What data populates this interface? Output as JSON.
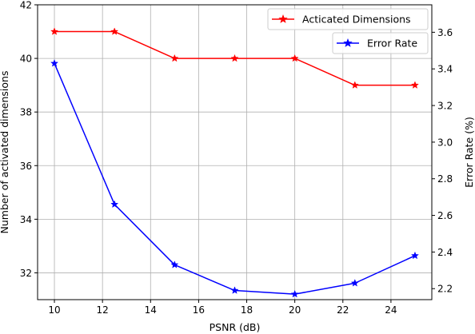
{
  "chart_data": {
    "type": "line",
    "title": "",
    "xlabel": "PSNR (dB)",
    "ylabel_left": "Number of activated dimensions",
    "ylabel_right": "Error Rate (%)",
    "x": [
      10,
      12.5,
      15,
      17.5,
      20,
      22.5,
      25
    ],
    "xlim": [
      9.3,
      25.7
    ],
    "ylim_left": [
      31.0,
      42.0
    ],
    "ylim_right": [
      2.14,
      3.75
    ],
    "xticks": [
      "10",
      "12",
      "14",
      "16",
      "18",
      "20",
      "22",
      "24"
    ],
    "yticks_left": [
      "32",
      "34",
      "36",
      "38",
      "40",
      "42"
    ],
    "yticks_right": [
      "2.2",
      "2.4",
      "2.6",
      "2.8",
      "3.0",
      "3.2",
      "3.4",
      "3.6"
    ],
    "grid": true,
    "series": [
      {
        "name": "Acticated Dimensions",
        "axis": "left",
        "color": "#ff0000",
        "marker": "star",
        "values": [
          41,
          41,
          40,
          40,
          40,
          39,
          39
        ]
      },
      {
        "name": "Error Rate",
        "axis": "right",
        "color": "#0000ff",
        "marker": "star",
        "values": [
          3.43,
          2.66,
          2.33,
          2.19,
          2.17,
          2.23,
          2.38
        ]
      }
    ],
    "legend": [
      {
        "label": "Acticated Dimensions",
        "placement": "top-right"
      },
      {
        "label": "Error Rate",
        "placement": "top-right"
      }
    ]
  }
}
